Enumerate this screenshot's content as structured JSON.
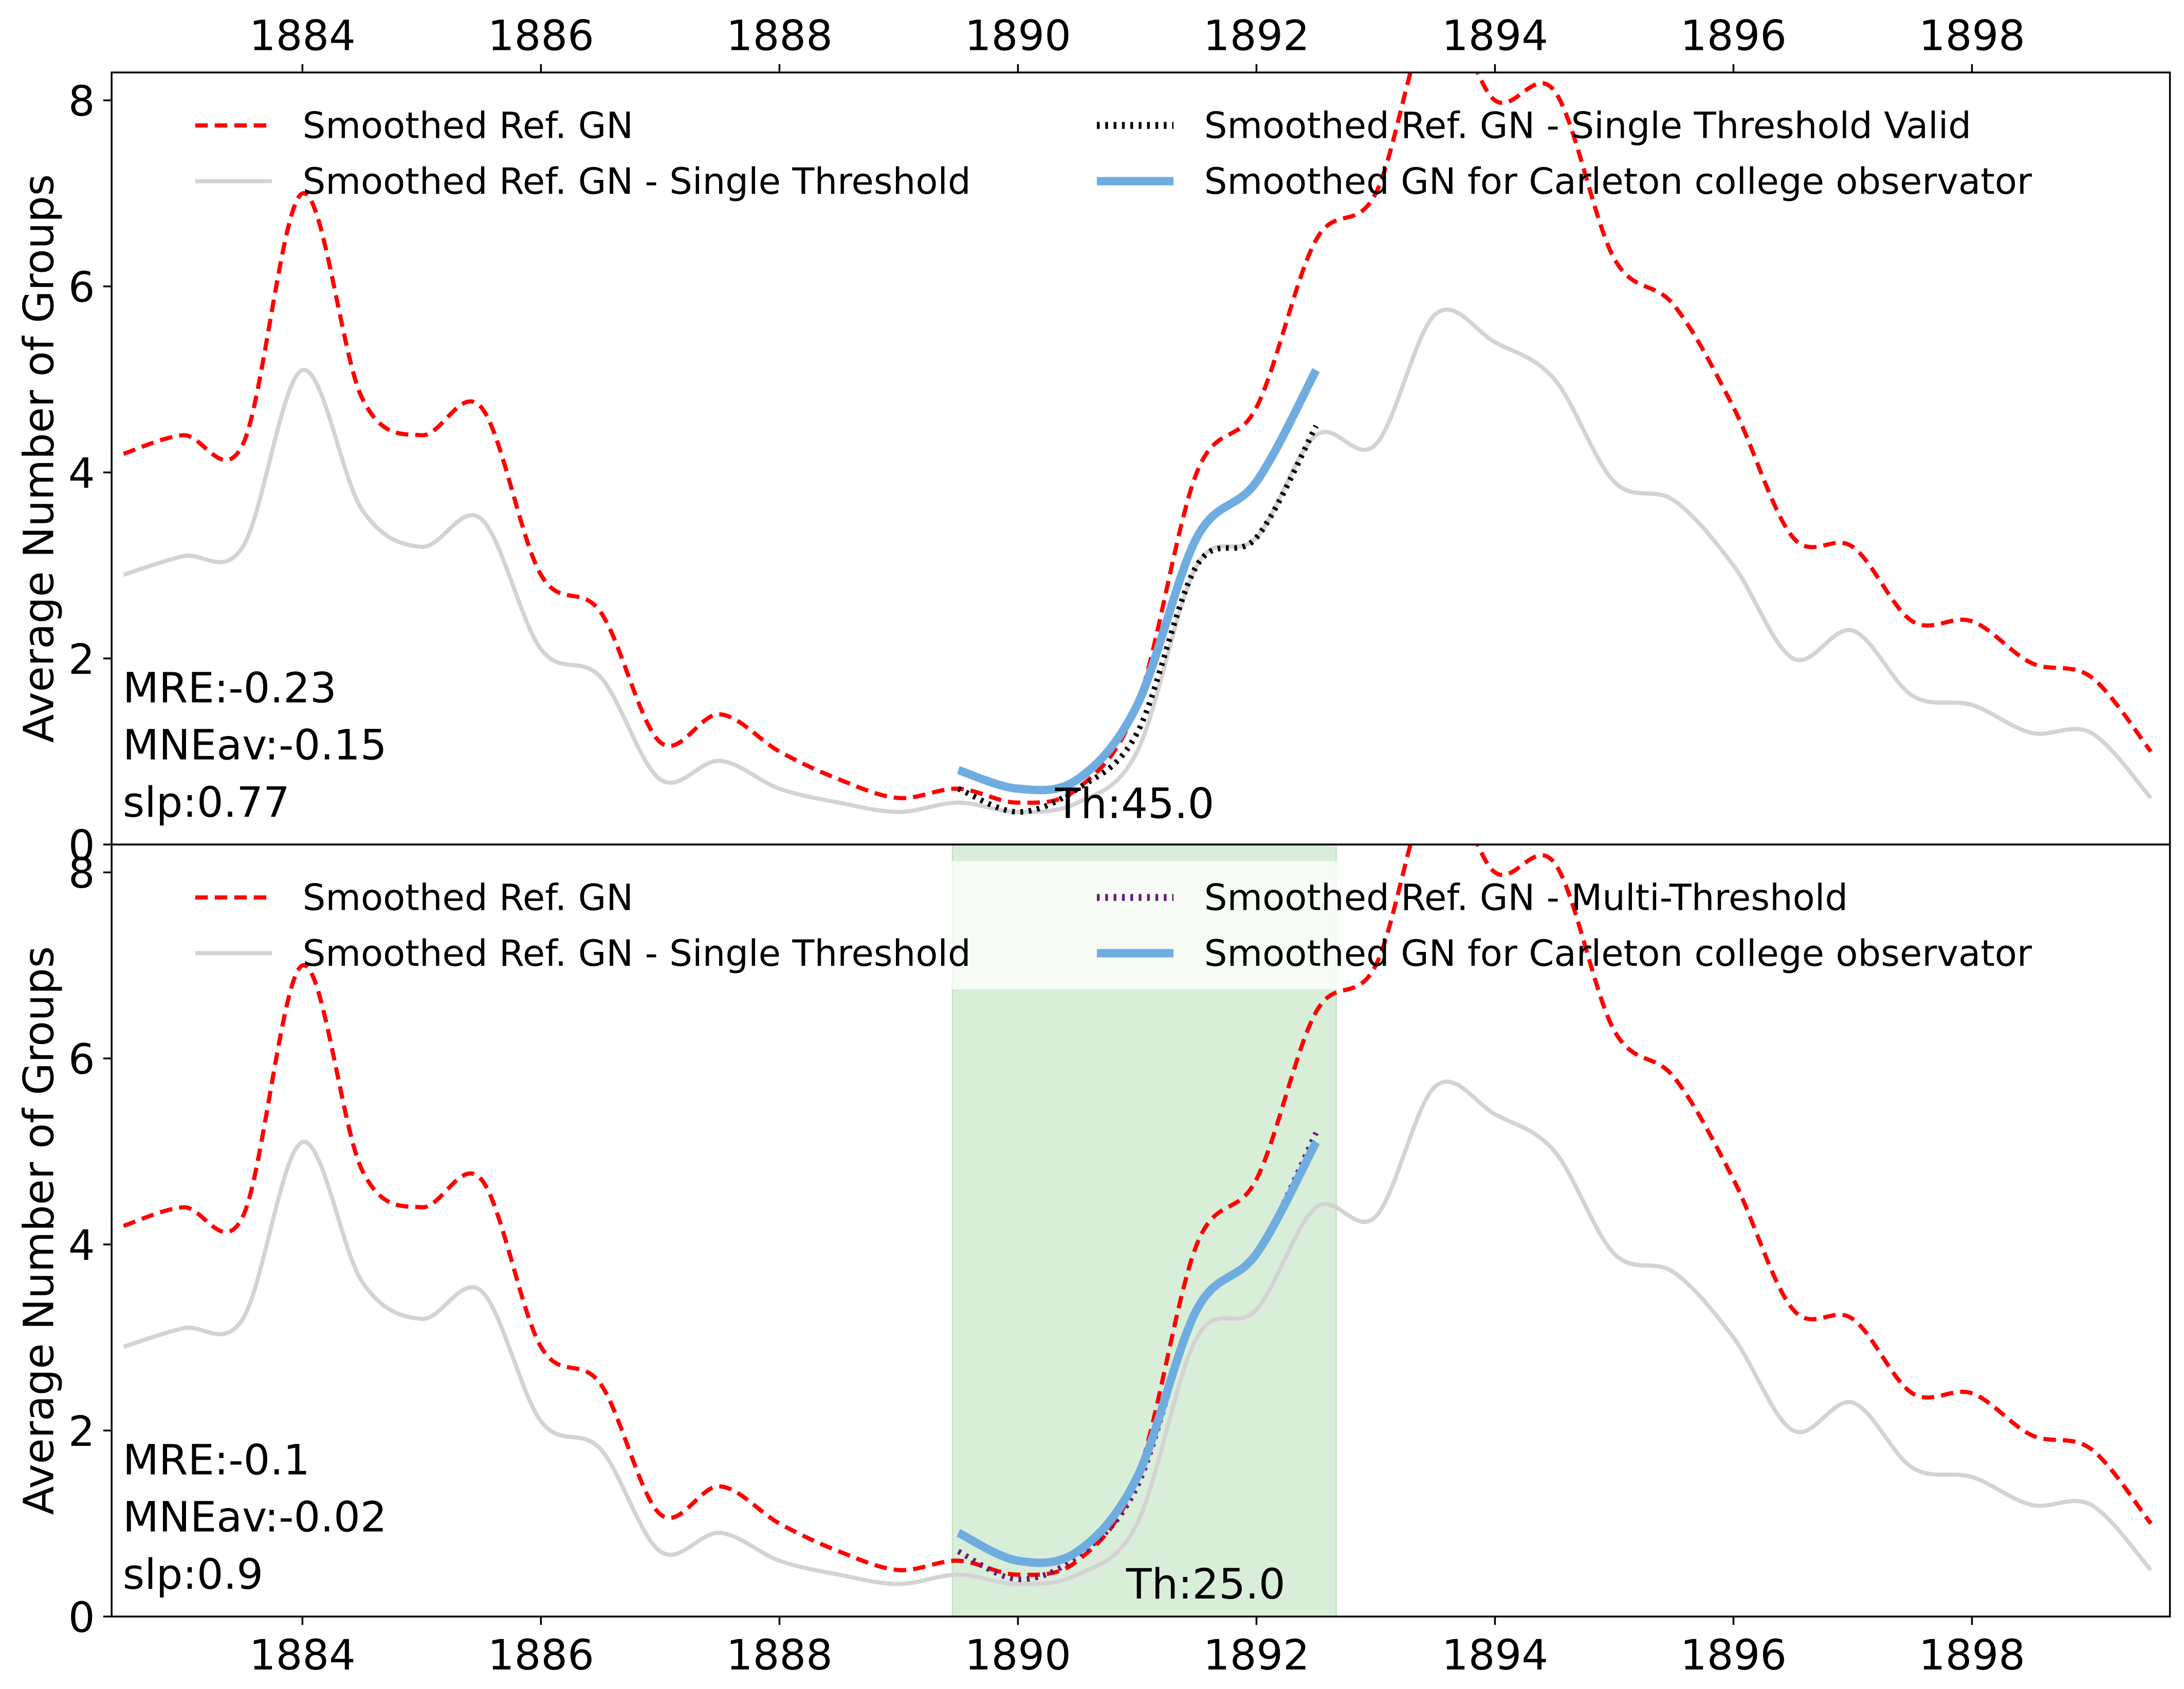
{
  "chart_data": [
    {
      "type": "line",
      "ylabel": "Average Number of Groups",
      "x": [
        1882.5,
        1883,
        1883.5,
        1884,
        1884.5,
        1885,
        1885.5,
        1886,
        1886.5,
        1887,
        1887.5,
        1888,
        1888.5,
        1889,
        1889.5,
        1890,
        1890.5,
        1891,
        1891.5,
        1892,
        1892.5,
        1893,
        1893.5,
        1894,
        1894.5,
        1895,
        1895.5,
        1896,
        1896.5,
        1897,
        1897.5,
        1898,
        1898.5,
        1899,
        1899.5
      ],
      "xlim": [
        1882.4,
        1899.66
      ],
      "xticks": [
        1884,
        1886,
        1888,
        1890,
        1892,
        1894,
        1896,
        1898
      ],
      "xtick_position": "top",
      "ylim": [
        0,
        8.3
      ],
      "yticks": [
        0,
        2,
        4,
        6,
        8
      ],
      "legend_columns": 2,
      "series": [
        {
          "name": "Smoothed Ref. GN",
          "color": "#ff0000",
          "linestyle": "--",
          "values": [
            4.2,
            4.4,
            4.3,
            7.0,
            4.8,
            4.4,
            4.7,
            2.9,
            2.5,
            1.1,
            1.4,
            1.0,
            0.7,
            0.5,
            0.6,
            0.45,
            0.6,
            1.5,
            4.0,
            4.7,
            6.5,
            7.0,
            9.0,
            8.0,
            8.1,
            6.3,
            5.8,
            4.7,
            3.3,
            3.2,
            2.4,
            2.4,
            1.95,
            1.8,
            1.0
          ]
        },
        {
          "name": "Smoothed Ref. GN - Single Threshold",
          "color": "#d3d3d3",
          "linestyle": "-",
          "values": [
            2.9,
            3.1,
            3.2,
            5.1,
            3.6,
            3.2,
            3.5,
            2.1,
            1.8,
            0.7,
            0.9,
            0.6,
            0.45,
            0.35,
            0.45,
            0.35,
            0.45,
            1.0,
            3.0,
            3.3,
            4.4,
            4.3,
            5.7,
            5.4,
            5.0,
            3.9,
            3.7,
            3.0,
            2.0,
            2.3,
            1.6,
            1.5,
            1.2,
            1.2,
            0.5
          ]
        },
        {
          "name": "Smoothed Ref. GN - Single Threshold Valid",
          "color": "#000000",
          "linestyle": ":",
          "values": [
            null,
            null,
            null,
            null,
            null,
            null,
            null,
            null,
            null,
            null,
            null,
            null,
            null,
            null,
            0.6,
            0.35,
            0.6,
            1.2,
            3.0,
            3.3,
            4.5,
            null,
            null,
            null,
            null,
            null,
            null,
            null,
            null,
            null,
            null,
            null,
            null,
            null,
            null
          ]
        },
        {
          "name": "Smoothed GN for Carleton college observator",
          "color": "#6fade0",
          "linestyle": "-",
          "width": 6,
          "values": [
            null,
            null,
            null,
            null,
            null,
            null,
            null,
            null,
            null,
            null,
            null,
            null,
            null,
            null,
            0.8,
            0.6,
            0.7,
            1.5,
            3.3,
            3.9,
            5.1,
            null,
            null,
            null,
            null,
            null,
            null,
            null,
            null,
            null,
            null,
            null,
            null,
            null,
            null
          ]
        }
      ],
      "annotations": [
        "MRE:-0.23",
        "MNEav:-0.15",
        "slp:0.77"
      ],
      "threshold_label": "Th:45.0"
    },
    {
      "type": "line",
      "ylabel": "Average Number of Groups",
      "x": [
        1882.5,
        1883,
        1883.5,
        1884,
        1884.5,
        1885,
        1885.5,
        1886,
        1886.5,
        1887,
        1887.5,
        1888,
        1888.5,
        1889,
        1889.5,
        1890,
        1890.5,
        1891,
        1891.5,
        1892,
        1892.5,
        1893,
        1893.5,
        1894,
        1894.5,
        1895,
        1895.5,
        1896,
        1896.5,
        1897,
        1897.5,
        1898,
        1898.5,
        1899,
        1899.5
      ],
      "xlim": [
        1882.4,
        1899.66
      ],
      "xticks": [
        1884,
        1886,
        1888,
        1890,
        1892,
        1894,
        1896,
        1898
      ],
      "xtick_position": "bottom",
      "ylim": [
        0,
        8.3
      ],
      "yticks": [
        0,
        2,
        4,
        6,
        8
      ],
      "legend_columns": 2,
      "span": [
        1889.45,
        1892.67
      ],
      "span_color": "#2ca02c",
      "series": [
        {
          "name": "Smoothed Ref. GN",
          "color": "#ff0000",
          "linestyle": "--",
          "values": [
            4.2,
            4.4,
            4.3,
            7.0,
            4.8,
            4.4,
            4.7,
            2.9,
            2.5,
            1.1,
            1.4,
            1.0,
            0.7,
            0.5,
            0.6,
            0.45,
            0.6,
            1.5,
            4.0,
            4.7,
            6.5,
            7.0,
            9.0,
            8.0,
            8.1,
            6.3,
            5.8,
            4.7,
            3.3,
            3.2,
            2.4,
            2.4,
            1.95,
            1.8,
            1.0
          ]
        },
        {
          "name": "Smoothed Ref. GN - Single Threshold",
          "color": "#d3d3d3",
          "linestyle": "-",
          "values": [
            2.9,
            3.1,
            3.2,
            5.1,
            3.6,
            3.2,
            3.5,
            2.1,
            1.8,
            0.7,
            0.9,
            0.6,
            0.45,
            0.35,
            0.45,
            0.35,
            0.45,
            1.0,
            3.0,
            3.3,
            4.4,
            4.3,
            5.7,
            5.4,
            5.0,
            3.9,
            3.7,
            3.0,
            2.0,
            2.3,
            1.6,
            1.5,
            1.2,
            1.2,
            0.5
          ]
        },
        {
          "name": "Smoothed Ref. GN - Multi-Threshold",
          "color": "#6a1b7a",
          "linestyle": ":",
          "values": [
            null,
            null,
            null,
            null,
            null,
            null,
            null,
            null,
            null,
            null,
            null,
            null,
            null,
            null,
            0.7,
            0.4,
            0.65,
            1.4,
            3.3,
            3.9,
            5.2,
            null,
            null,
            null,
            null,
            null,
            null,
            null,
            null,
            null,
            null,
            null,
            null,
            null,
            null
          ]
        },
        {
          "name": "Smoothed GN for Carleton college observator",
          "color": "#6fade0",
          "linestyle": "-",
          "width": 6,
          "values": [
            null,
            null,
            null,
            null,
            null,
            null,
            null,
            null,
            null,
            null,
            null,
            null,
            null,
            null,
            0.9,
            0.6,
            0.7,
            1.5,
            3.3,
            3.9,
            5.1,
            null,
            null,
            null,
            null,
            null,
            null,
            null,
            null,
            null,
            null,
            null,
            null,
            null,
            null
          ]
        }
      ],
      "annotations": [
        "MRE:-0.1",
        "MNEav:-0.02",
        "slp:0.9"
      ],
      "threshold_label": "Th:25.0"
    }
  ]
}
